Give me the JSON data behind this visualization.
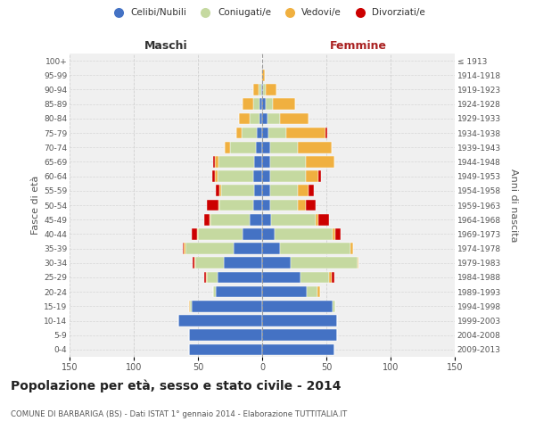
{
  "age_groups": [
    "0-4",
    "5-9",
    "10-14",
    "15-19",
    "20-24",
    "25-29",
    "30-34",
    "35-39",
    "40-44",
    "45-49",
    "50-54",
    "55-59",
    "60-64",
    "65-69",
    "70-74",
    "75-79",
    "80-84",
    "85-89",
    "90-94",
    "95-99",
    "100+"
  ],
  "birth_years": [
    "2009-2013",
    "2004-2008",
    "1999-2003",
    "1994-1998",
    "1989-1993",
    "1984-1988",
    "1979-1983",
    "1974-1978",
    "1969-1973",
    "1964-1968",
    "1959-1963",
    "1954-1958",
    "1949-1953",
    "1944-1948",
    "1939-1943",
    "1934-1938",
    "1929-1933",
    "1924-1928",
    "1919-1923",
    "1914-1918",
    "≤ 1913"
  ],
  "maschi": {
    "celibi": [
      57,
      57,
      65,
      55,
      36,
      35,
      30,
      22,
      15,
      10,
      7,
      6,
      7,
      6,
      5,
      4,
      2,
      2,
      1,
      0,
      0
    ],
    "coniugati": [
      0,
      0,
      0,
      1,
      2,
      8,
      22,
      38,
      35,
      30,
      26,
      26,
      28,
      28,
      20,
      12,
      8,
      5,
      2,
      0,
      0
    ],
    "vedovi": [
      0,
      0,
      0,
      1,
      0,
      1,
      1,
      1,
      1,
      1,
      1,
      1,
      2,
      3,
      4,
      4,
      8,
      8,
      4,
      1,
      0
    ],
    "divorziati": [
      0,
      0,
      0,
      0,
      0,
      1,
      1,
      1,
      4,
      4,
      9,
      3,
      2,
      1,
      0,
      0,
      0,
      0,
      0,
      0,
      0
    ]
  },
  "femmine": {
    "nubili": [
      56,
      58,
      58,
      55,
      35,
      30,
      22,
      14,
      10,
      7,
      6,
      6,
      6,
      6,
      6,
      5,
      4,
      3,
      1,
      0,
      0
    ],
    "coniugate": [
      0,
      0,
      0,
      2,
      8,
      22,
      52,
      55,
      45,
      35,
      22,
      22,
      28,
      28,
      22,
      14,
      10,
      5,
      2,
      0,
      0
    ],
    "vedove": [
      0,
      0,
      0,
      0,
      2,
      2,
      1,
      2,
      2,
      2,
      6,
      8,
      10,
      22,
      26,
      30,
      22,
      18,
      8,
      2,
      0
    ],
    "divorziate": [
      0,
      0,
      0,
      0,
      0,
      2,
      0,
      0,
      4,
      8,
      8,
      4,
      2,
      0,
      0,
      2,
      0,
      0,
      0,
      0,
      0
    ]
  },
  "colors": {
    "celibi": "#4472c4",
    "coniugati": "#c5d9a0",
    "vedovi": "#f0b040",
    "divorziati": "#cc0000"
  },
  "title": "Popolazione per età, sesso e stato civile - 2014",
  "subtitle": "COMUNE DI BARBARIGA (BS) - Dati ISTAT 1° gennaio 2014 - Elaborazione TUTTITALIA.IT",
  "maschi_label": "Maschi",
  "femmine_label": "Femmine",
  "ylabel_left": "Fasce di età",
  "ylabel_right": "Anni di nascita",
  "xlim": 150,
  "bg_color": "#f0f0f0",
  "grid_color": "#cccccc",
  "femmine_color": "#aa2222"
}
